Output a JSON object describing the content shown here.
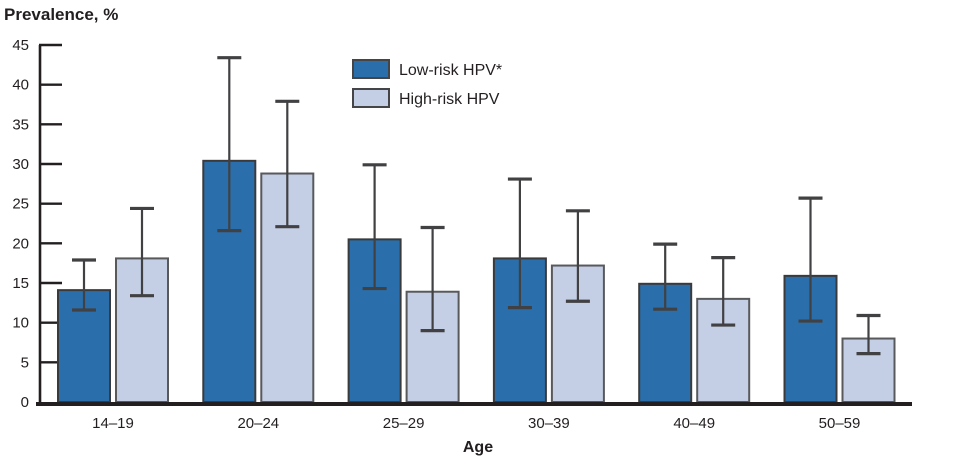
{
  "chart_data": {
    "type": "bar",
    "title": "Prevalence, %",
    "xlabel": "Age",
    "categories": [
      "14–19",
      "20–24",
      "25–29",
      "30–39",
      "40–49",
      "50–59"
    ],
    "series": [
      {
        "name": "Low-risk HPV*",
        "key": "low-risk-hpv",
        "color": "#2A6FAC",
        "border": "#3A3A3C",
        "values": [
          14.1,
          30.4,
          20.5,
          18.1,
          14.9,
          15.9
        ],
        "ci_low": [
          11.6,
          21.6,
          14.3,
          11.9,
          11.7,
          10.2
        ],
        "ci_high": [
          17.9,
          43.4,
          29.9,
          28.1,
          19.9,
          25.7
        ]
      },
      {
        "name": "High-risk HPV",
        "key": "high-risk-hpv",
        "color": "#C4CFE5",
        "border": "#58595B",
        "values": [
          18.1,
          28.8,
          13.9,
          17.2,
          13.0,
          8.0
        ],
        "ci_low": [
          13.4,
          22.1,
          9.0,
          12.7,
          9.7,
          6.1
        ],
        "ci_high": [
          24.4,
          37.9,
          22.0,
          24.1,
          18.2,
          10.9
        ]
      }
    ],
    "ylim": [
      0,
      45
    ],
    "ytick_step": 5,
    "yticks": [
      0,
      5,
      10,
      15,
      20,
      25,
      30,
      35,
      40,
      45
    ],
    "grid": false,
    "legend_position": "top-center",
    "error_bar_color": "#414042",
    "axis_color": "#231F20",
    "text_color": "#231F20",
    "legend_swatch_border": "#454547",
    "background_color": "#FFFFFF"
  }
}
